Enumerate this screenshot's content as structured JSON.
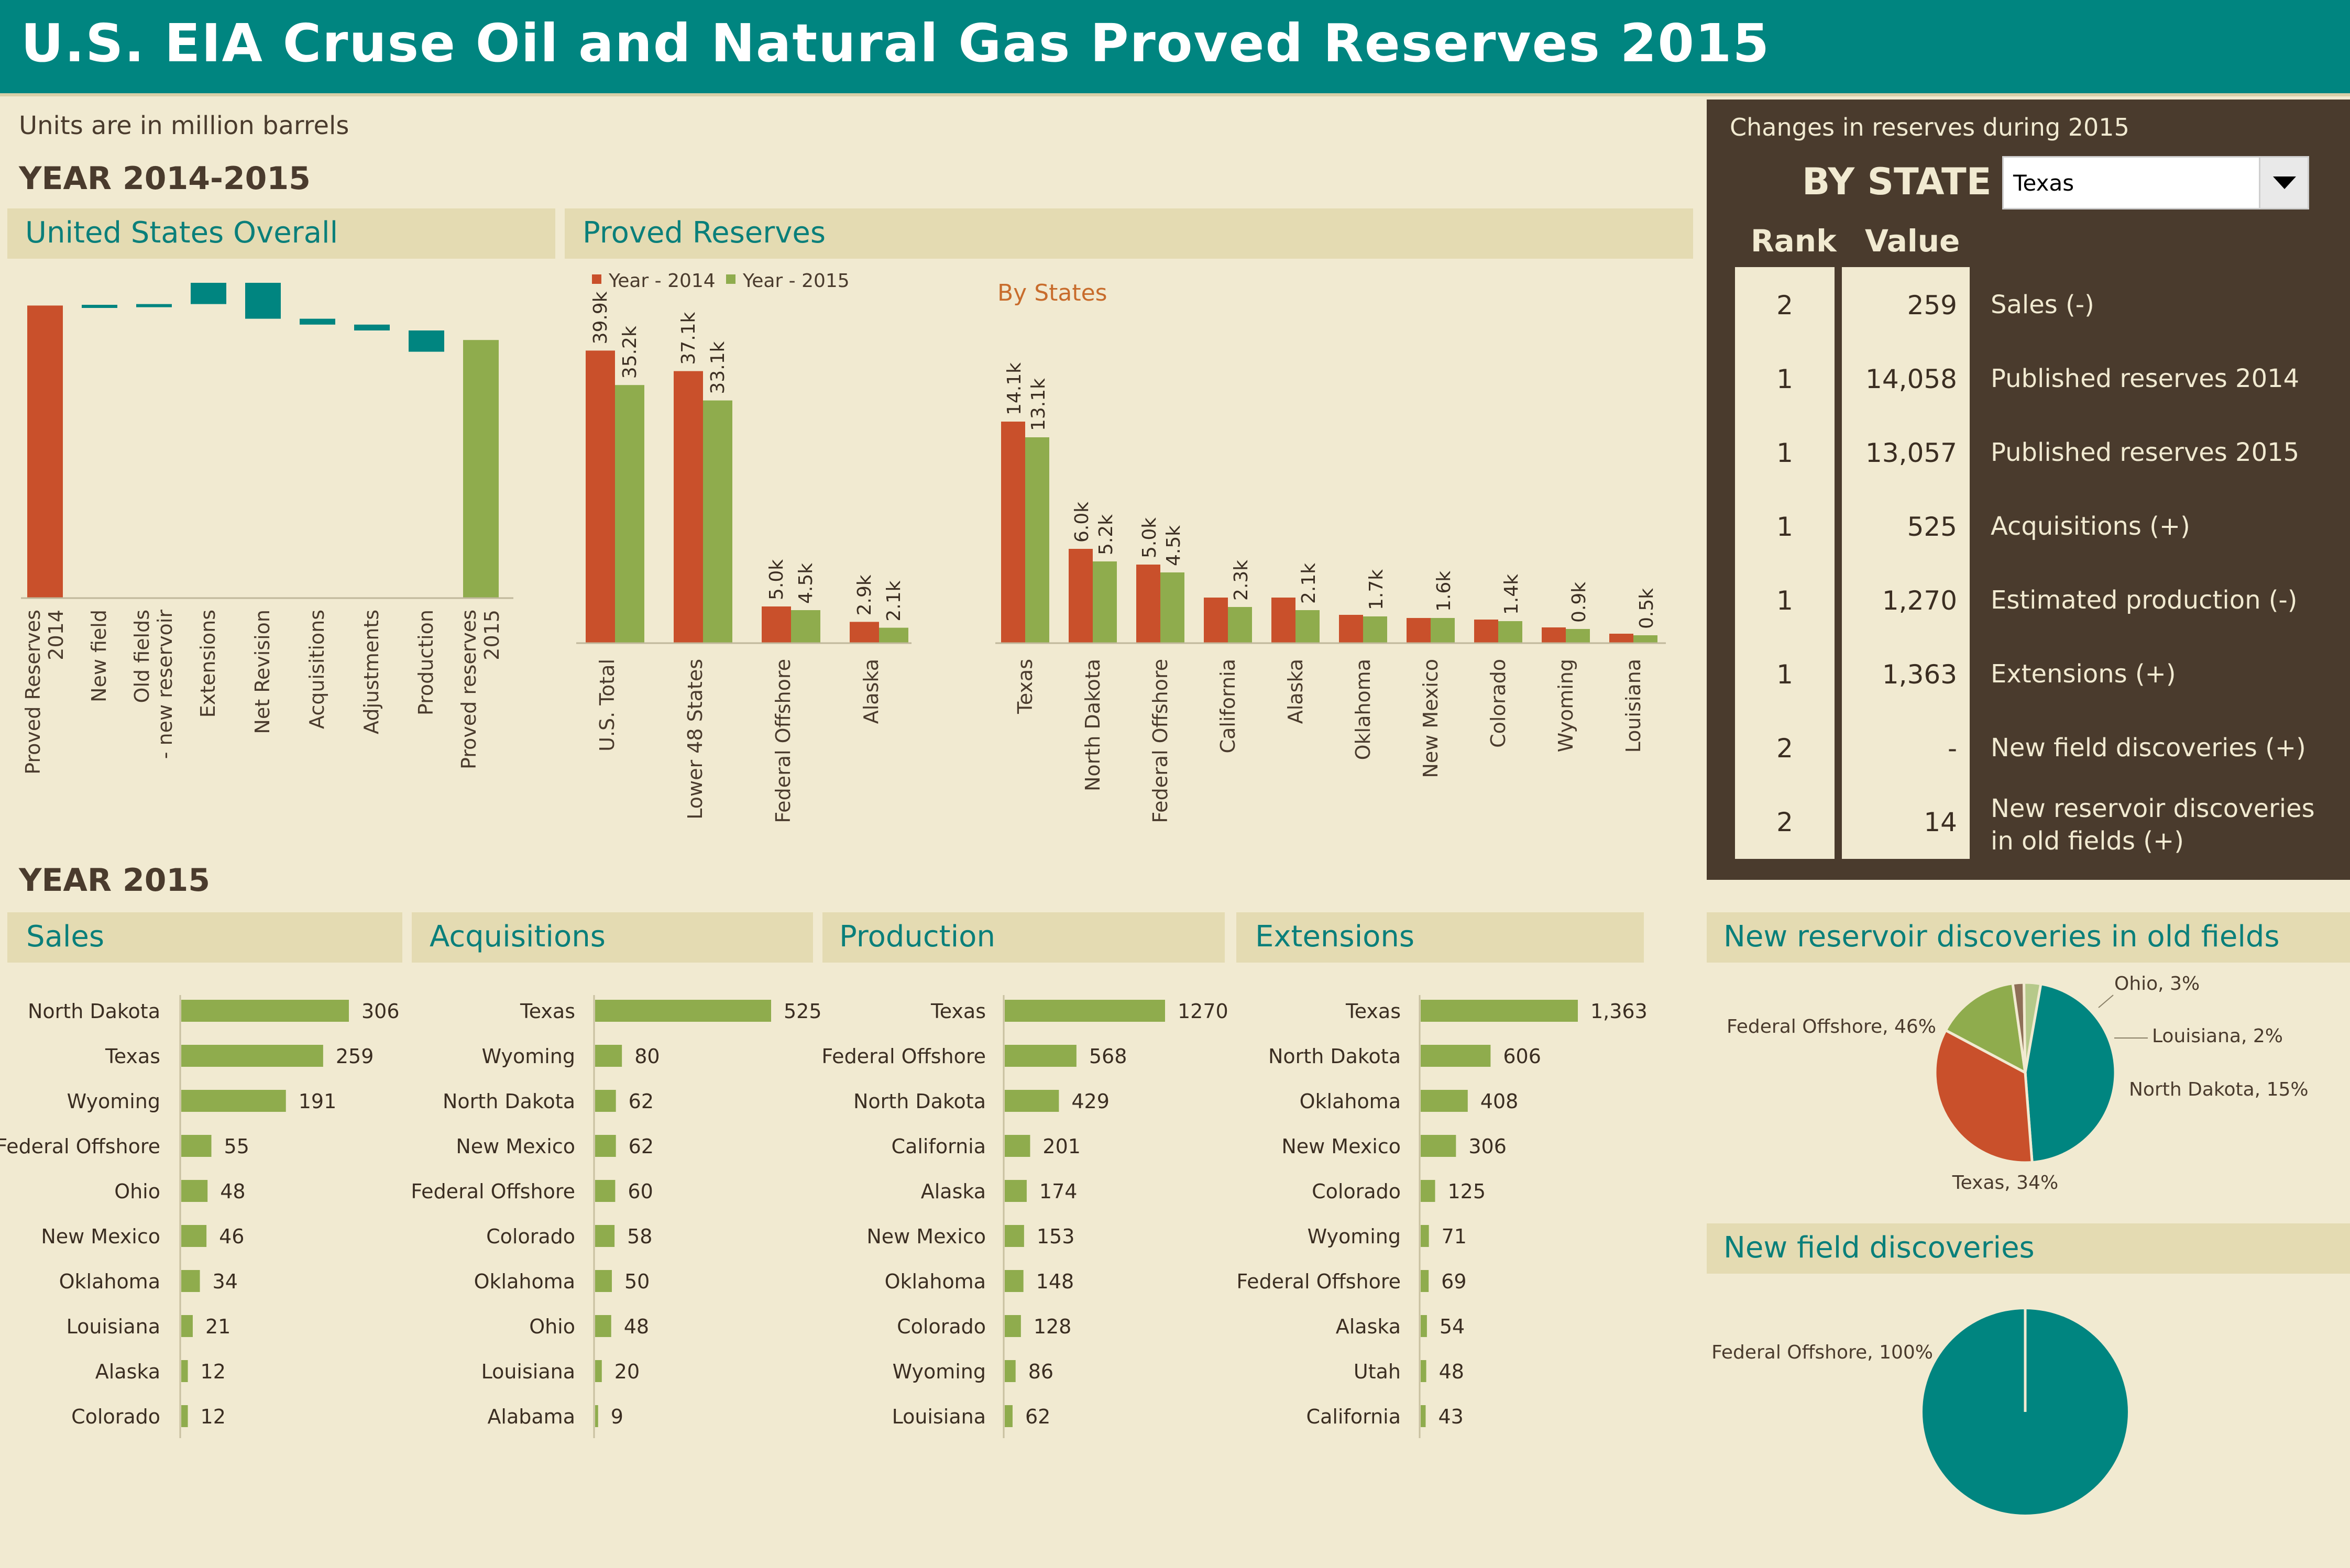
{
  "title": "U.S. EIA Cruse Oil and Natural Gas Proved Reserves 2015",
  "units_note": "Units are in million barrels",
  "section_year_1": "YEAR 2014-2015",
  "section_year_2": "YEAR 2015",
  "panels": {
    "overall": "United States Overall",
    "proved": "Proved Reserves",
    "by_states": "By States",
    "sales": "Sales",
    "acquisitions": "Acquisitions",
    "production": "Production",
    "extensions": "Extensions",
    "new_reservoir": "New reservoir discoveries in old fields",
    "new_field": "New field discoveries"
  },
  "right_panel": {
    "subtitle": "Changes in reserves during 2015",
    "by_state": "BY STATE",
    "selected_state": "Texas",
    "rank_header": "Rank",
    "value_header": "Value",
    "rows": [
      {
        "rank": "2",
        "value": "259",
        "label": "Sales (-)"
      },
      {
        "rank": "1",
        "value": "14,058",
        "label": "Published reserves 2014"
      },
      {
        "rank": "1",
        "value": "13,057",
        "label": "Published reserves 2015"
      },
      {
        "rank": "1",
        "value": "525",
        "label": "Acquisitions (+)"
      },
      {
        "rank": "1",
        "value": "1,270",
        "label": "Estimated production (-)"
      },
      {
        "rank": "1",
        "value": "1,363",
        "label": "Extensions (+)"
      },
      {
        "rank": "2",
        "value": "-",
        "label": "New field discoveries (+)"
      },
      {
        "rank": "2",
        "value": "14",
        "label": "New reservoir discoveries in old fields (+)"
      }
    ]
  },
  "colors": {
    "y2014": "#c9502b",
    "y2015": "#8fac4d",
    "teal": "#008580",
    "brown": "#4a3b2d"
  },
  "chart_data": [
    {
      "id": "overall",
      "type": "bar",
      "subtype": "waterfall",
      "categories": [
        "Proved Reserves 2014",
        "New field",
        "Old fields - new reservoir",
        "Extensions",
        "Net Revision",
        "Acquisitions",
        "Adjustments",
        "Production",
        "Proved reserves 2015"
      ],
      "steps": [
        {
          "kind": "total",
          "value": 39.9
        },
        {
          "kind": "delta",
          "value": 0.1
        },
        {
          "kind": "delta",
          "value": 0.1
        },
        {
          "kind": "delta",
          "value": 2.9
        },
        {
          "kind": "delta",
          "value": -4.9
        },
        {
          "kind": "delta",
          "value": -0.8
        },
        {
          "kind": "delta",
          "value": -0.8
        },
        {
          "kind": "delta",
          "value": -2.9
        },
        {
          "kind": "total",
          "value": 35.2
        }
      ]
    },
    {
      "id": "proved",
      "type": "bar",
      "categories": [
        "U.S. Total",
        "Lower 48 States",
        "Federal Offshore",
        "Alaska"
      ],
      "series": [
        {
          "name": "Year - 2014",
          "values": [
            39.9,
            37.1,
            5.0,
            2.9
          ],
          "labels": [
            "39.9k",
            "37.1k",
            "5.0k",
            "2.9k"
          ]
        },
        {
          "name": "Year - 2015",
          "values": [
            35.2,
            33.1,
            4.5,
            2.1
          ],
          "labels": [
            "35.2k",
            "33.1k",
            "4.5k",
            "2.1k"
          ]
        }
      ]
    },
    {
      "id": "by_states",
      "type": "bar",
      "title": "By States",
      "categories": [
        "Texas",
        "North Dakota",
        "Federal Offshore",
        "California",
        "Alaska",
        "Oklahoma",
        "New Mexico",
        "Colorado",
        "Wyoming",
        "Louisiana"
      ],
      "series": [
        {
          "name": "Year - 2014",
          "values": [
            14.1,
            6.0,
            5.0,
            2.9,
            2.9,
            1.8,
            1.6,
            1.5,
            1.0,
            0.6
          ]
        },
        {
          "name": "Year - 2015",
          "values": [
            13.1,
            5.2,
            4.5,
            2.3,
            2.1,
            1.7,
            1.6,
            1.4,
            0.9,
            0.5
          ],
          "labels": [
            "13.1k",
            "5.2k",
            "4.5k",
            "2.3k",
            "2.1k",
            "1.7k",
            "1.6k",
            "1.4k",
            "0.9k",
            "0.5k"
          ]
        }
      ],
      "top_labels_2014": [
        "14.1k",
        "6.0k",
        "5.0k"
      ]
    },
    {
      "id": "sales",
      "type": "bar",
      "orientation": "horizontal",
      "categories": [
        "North Dakota",
        "Texas",
        "Wyoming",
        "Federal Offshore",
        "Ohio",
        "New Mexico",
        "Oklahoma",
        "Louisiana",
        "Alaska",
        "Colorado"
      ],
      "values": [
        306,
        259,
        191,
        55,
        48,
        46,
        34,
        21,
        12,
        12
      ],
      "labels": [
        "306",
        "259",
        "191",
        "55",
        "48",
        "46",
        "34",
        "21",
        "12",
        "12"
      ]
    },
    {
      "id": "acquisitions",
      "type": "bar",
      "orientation": "horizontal",
      "categories": [
        "Texas",
        "Wyoming",
        "North Dakota",
        "New Mexico",
        "Federal Offshore",
        "Colorado",
        "Oklahoma",
        "Ohio",
        "Louisiana",
        "Alabama"
      ],
      "values": [
        525,
        80,
        62,
        62,
        60,
        58,
        50,
        48,
        20,
        9
      ],
      "labels": [
        "525",
        "80",
        "62",
        "62",
        "60",
        "58",
        "50",
        "48",
        "20",
        "9"
      ]
    },
    {
      "id": "production",
      "type": "bar",
      "orientation": "horizontal",
      "categories": [
        "Texas",
        "Federal Offshore",
        "North Dakota",
        "California",
        "Alaska",
        "New Mexico",
        "Oklahoma",
        "Colorado",
        "Wyoming",
        "Louisiana"
      ],
      "values": [
        1270,
        568,
        429,
        201,
        174,
        153,
        148,
        128,
        86,
        62
      ],
      "labels": [
        "1270",
        "568",
        "429",
        "201",
        "174",
        "153",
        "148",
        "128",
        "86",
        "62"
      ]
    },
    {
      "id": "extensions",
      "type": "bar",
      "orientation": "horizontal",
      "categories": [
        "Texas",
        "North Dakota",
        "Oklahoma",
        "New Mexico",
        "Colorado",
        "Wyoming",
        "Federal Offshore",
        "Alaska",
        "Utah",
        "California"
      ],
      "values": [
        1363,
        606,
        408,
        306,
        125,
        71,
        69,
        54,
        48,
        43
      ],
      "labels": [
        "1,363",
        "606",
        "408",
        "306",
        "125",
        "71",
        "69",
        "54",
        "48",
        "43"
      ]
    },
    {
      "id": "new_reservoir",
      "type": "pie",
      "slices": [
        {
          "label": "Federal Offshore, 46%",
          "value": 46,
          "color": "#008580"
        },
        {
          "label": "Texas, 34%",
          "value": 34,
          "color": "#c9502b"
        },
        {
          "label": "North Dakota, 15%",
          "value": 15,
          "color": "#8fac4d"
        },
        {
          "label": "Louisiana, 2%",
          "value": 2,
          "color": "#8e6f57"
        },
        {
          "label": "Ohio, 3%",
          "value": 3,
          "color": "#b6c98a"
        }
      ]
    },
    {
      "id": "new_field",
      "type": "pie",
      "slices": [
        {
          "label": "Federal Offshore, 100%",
          "value": 100,
          "color": "#008580"
        }
      ]
    }
  ]
}
